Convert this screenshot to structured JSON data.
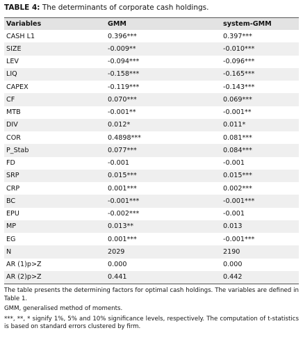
{
  "title": {
    "label": "TABLE 4:",
    "text": "The determinants of corporate cash holdings."
  },
  "table": {
    "header": [
      "Variables",
      "GMM",
      "system-GMM"
    ],
    "rows": [
      [
        "CASH L1",
        "0.396***",
        "0.397***"
      ],
      [
        "SIZE",
        "-0.009**",
        "-0.010***"
      ],
      [
        "LEV",
        "-0.094***",
        "-0.096***"
      ],
      [
        "LIQ",
        "-0.158***",
        "-0.165***"
      ],
      [
        "CAPEX",
        "-0.119***",
        "-0.143***"
      ],
      [
        "CF",
        "0.070***",
        "0.069***"
      ],
      [
        "MTB",
        "-0.001**",
        "-0.001**"
      ],
      [
        "DIV",
        "0.012*",
        "0.011*"
      ],
      [
        "COR",
        "0.4898***",
        "0.081***"
      ],
      [
        "P_Stab",
        "0.077***",
        "0.084***"
      ],
      [
        "FD",
        "-0.001",
        "-0.001"
      ],
      [
        "SRP",
        "0.015***",
        "0.015***"
      ],
      [
        "CRP",
        "0.001***",
        "0.002***"
      ],
      [
        "BC",
        "-0.001***",
        "-0.001***"
      ],
      [
        "EPU",
        "-0.002***",
        "-0.001"
      ],
      [
        "MP",
        "0.013**",
        "0.013"
      ],
      [
        "EG",
        "0.001***",
        "-0.001***"
      ],
      [
        "N",
        "2029",
        "2190"
      ],
      [
        "AR (1)p>Z",
        "0.000",
        "0.000"
      ],
      [
        "AR (2)p>Z",
        "0.441",
        "0.442"
      ]
    ]
  },
  "notes": [
    "The table presents the determining factors for optimal cash holdings. The variables are defined in Table 1.",
    "GMM, generalised method of moments.",
    "***, **, * signify 1%, 5% and 10% significance levels, respectively. The computation of t-statistics is based on standard errors clustered by firm."
  ]
}
